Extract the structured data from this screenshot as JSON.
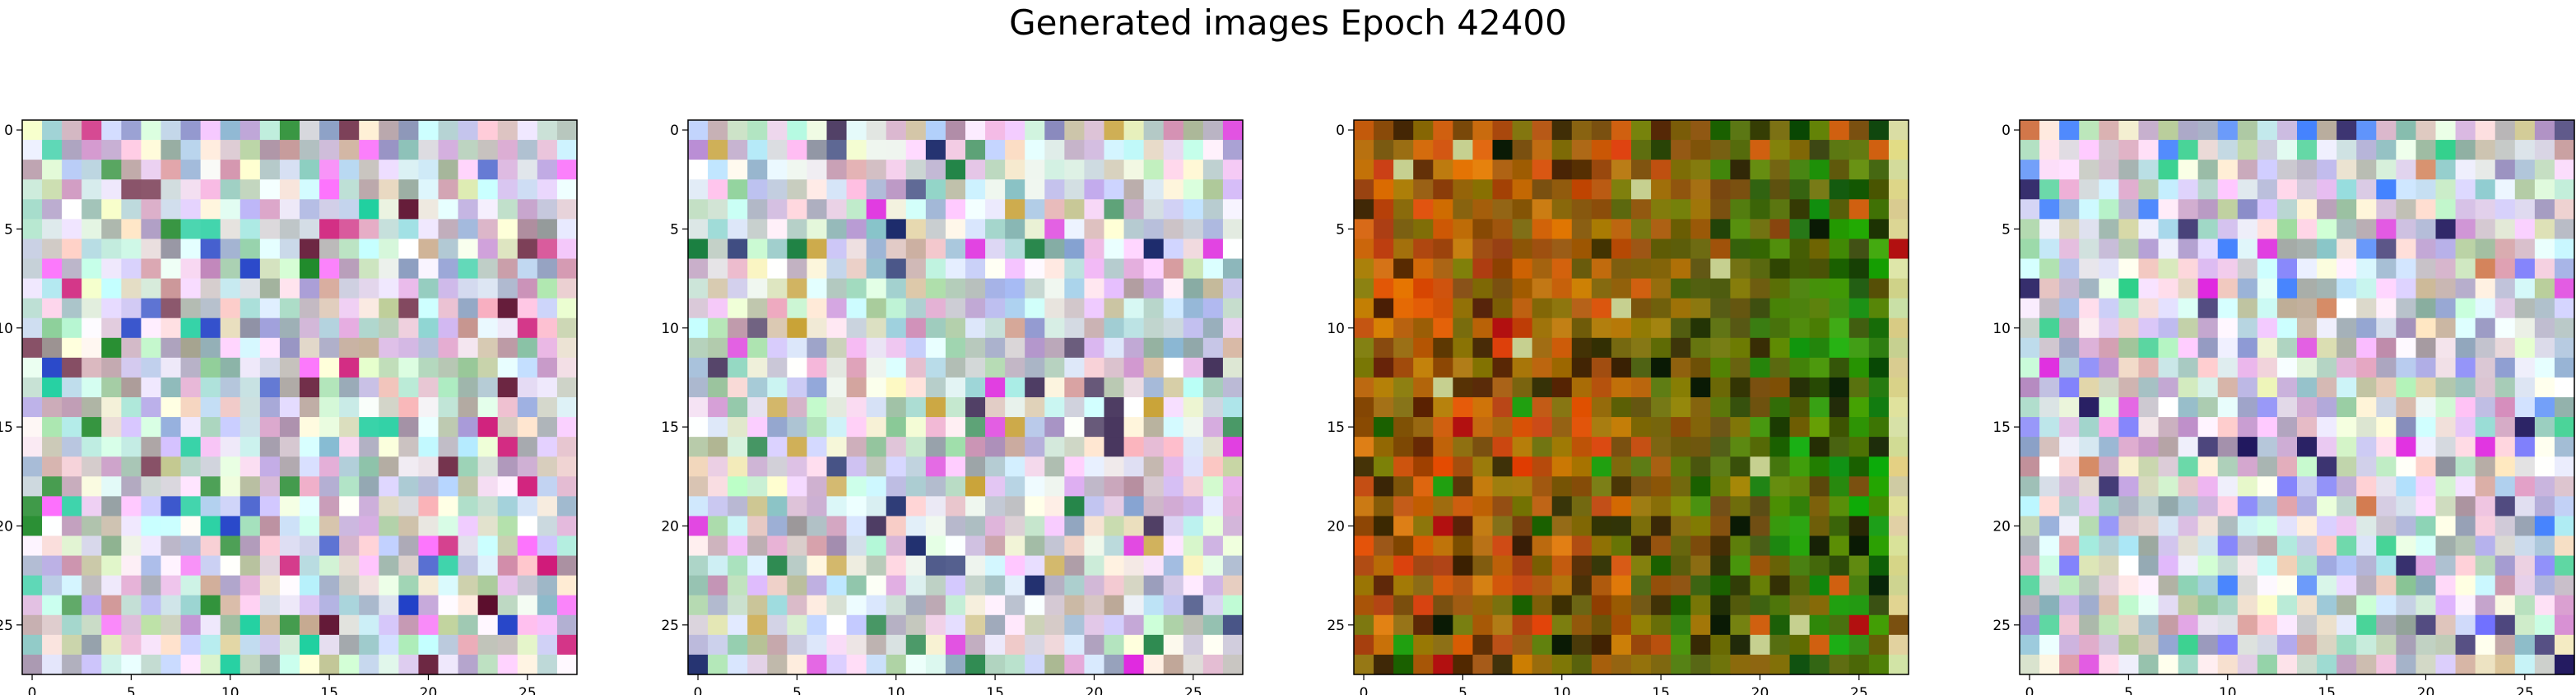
{
  "title": "Generated images Epoch 42400",
  "grid": {
    "size": 28,
    "ticks": [
      0,
      5,
      10,
      15,
      20,
      25
    ]
  },
  "panels": [
    {
      "palette": "pastel-mixed",
      "accent_colors": [
        "#ff66ff",
        "#d01878",
        "#1f8a2a",
        "#2040c8",
        "#5a0a2a",
        "#20d0a0",
        "#f0e8ff"
      ]
    },
    {
      "palette": "pastel-mixed",
      "accent_colors": [
        "#e028e0",
        "#1b2a6b",
        "#1a8040",
        "#c8a030",
        "#3d2a55",
        "#f0f8f0",
        "#d8e6ff"
      ]
    },
    {
      "palette": "green-brown",
      "accent_colors": [
        "#b21010",
        "#d06010",
        "#7a5010",
        "#1a6000",
        "#20a010",
        "#0a1a05",
        "#c6d090"
      ]
    },
    {
      "palette": "pastel-mixed",
      "accent_colors": [
        "#e028e0",
        "#1d145c",
        "#2ed08a",
        "#4080ff",
        "#f0f0ff",
        "#d07040",
        "#7070ff"
      ]
    }
  ]
}
